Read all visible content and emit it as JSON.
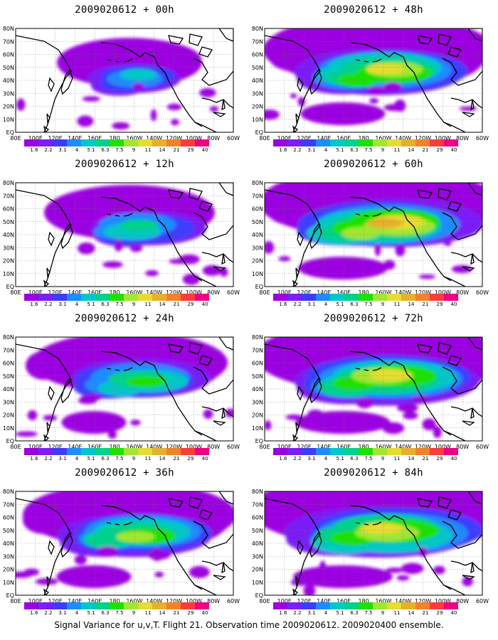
{
  "panels": [
    {
      "title": "2009020612 + 00h",
      "intensity": 0.3,
      "spread": 0.35,
      "north": 0.55
    },
    {
      "title": "2009020612 + 48h",
      "intensity": 0.8,
      "spread": 0.85,
      "north": 0.85
    },
    {
      "title": "2009020612 + 12h",
      "intensity": 0.45,
      "spread": 0.5,
      "north": 0.65
    },
    {
      "title": "2009020612 + 60h",
      "intensity": 0.85,
      "spread": 0.9,
      "north": 0.88
    },
    {
      "title": "2009020612 + 24h",
      "intensity": 0.6,
      "spread": 0.65,
      "north": 0.75
    },
    {
      "title": "2009020612 + 72h",
      "intensity": 0.82,
      "spread": 0.95,
      "north": 0.9
    },
    {
      "title": "2009020612 + 36h",
      "intensity": 0.72,
      "spread": 0.75,
      "north": 0.8
    },
    {
      "title": "2009020612 + 84h",
      "intensity": 0.8,
      "spread": 1.0,
      "north": 0.92
    }
  ],
  "lon_labels": [
    "80E",
    "100E",
    "120E",
    "140E",
    "160E",
    "180",
    "160W",
    "140W",
    "120W",
    "100W",
    "80W",
    "60W"
  ],
  "lat_labels": [
    "80N",
    "70N",
    "60N",
    "50N",
    "40N",
    "30N",
    "20N",
    "10N",
    "EQ"
  ],
  "colorbar": {
    "levels": [
      "1.6",
      "2.2",
      "3.1",
      "4",
      "5.1",
      "6.3",
      "7.5",
      "9",
      "11",
      "14",
      "21",
      "29",
      "40"
    ],
    "colors": [
      "#9b00e0",
      "#7a1ff5",
      "#3c3cff",
      "#1e8cff",
      "#00c8c8",
      "#00d28c",
      "#1ee100",
      "#a0e632",
      "#e6dc32",
      "#e6af2d",
      "#f08228",
      "#fa3c3c",
      "#f00082"
    ]
  },
  "caption": "Signal Variance for u,v,T. Flight 21. Observation time 2009020612. 2009020400 ensemble."
}
